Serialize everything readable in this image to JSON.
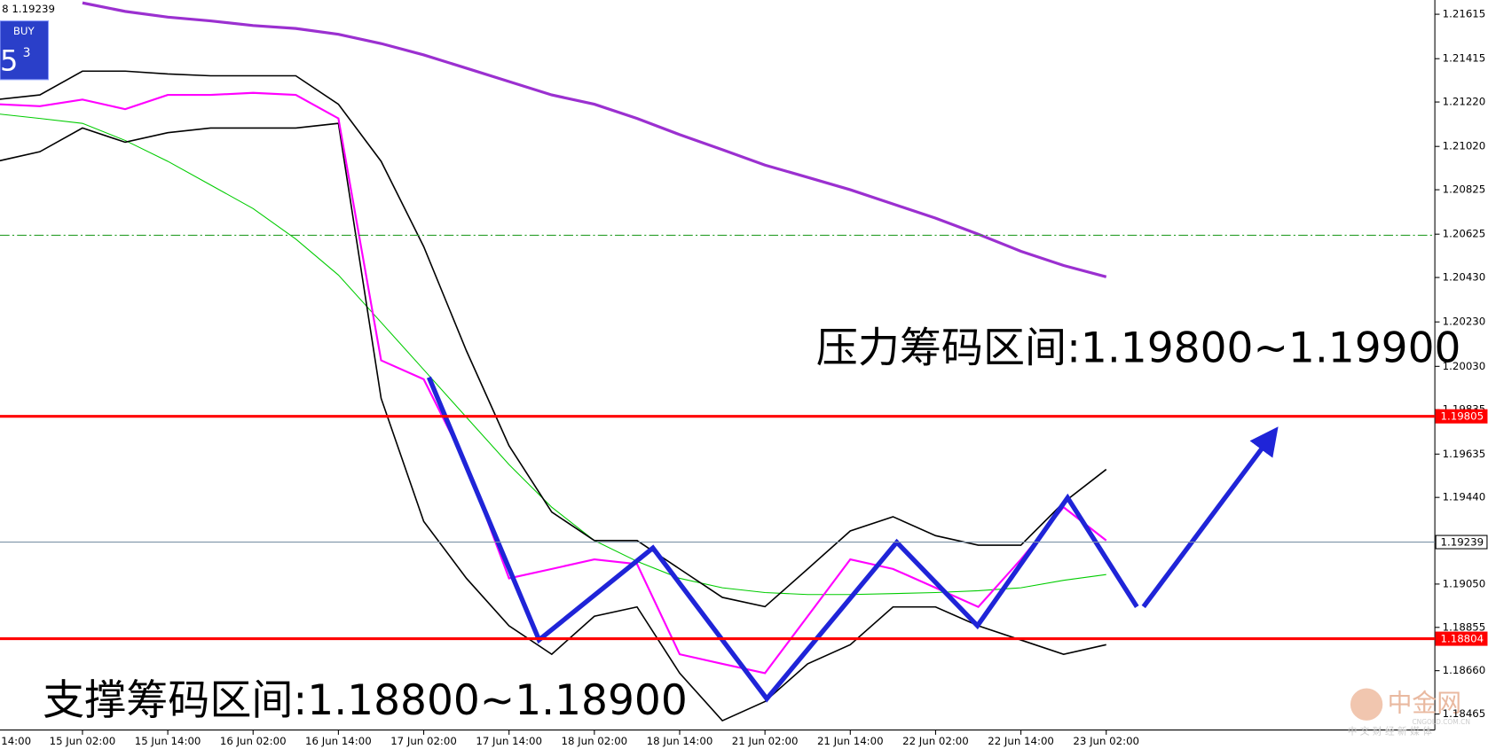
{
  "chart_data": {
    "type": "line",
    "header": {
      "symbol_price": "8 1.19239",
      "button": "BUY",
      "big_digit": "5",
      "small_digit": "3"
    },
    "annotations": [
      "压力筹码区间:1.19800~1.19900",
      "支撑筹码区间:1.18800~1.18900"
    ],
    "watermark": {
      "name": "中金网",
      "domain": "CNGOLD.COM.CN",
      "slogan": "中 文 财 经 新 媒 体"
    },
    "categories": [
      "14:00",
      null,
      "15 Jun 02:00",
      null,
      "15 Jun 14:00",
      null,
      "16 Jun 02:00",
      null,
      "16 Jun 14:00",
      null,
      "17 Jun 02:00",
      null,
      "17 Jun 14:00",
      null,
      "18 Jun 02:00",
      null,
      "18 Jun 14:00",
      null,
      "21 Jun 02:00",
      null,
      "21 Jun 14:00",
      null,
      "22 Jun 02:00",
      null,
      "22 Jun 14:00",
      null,
      "23 Jun 02:00"
    ],
    "series": [
      {
        "color": "#9b30d0",
        "width": 3,
        "values": [
          null,
          null,
          1.21666,
          1.21628,
          1.21602,
          1.21585,
          1.21564,
          1.21551,
          1.21525,
          1.21483,
          1.21432,
          1.21372,
          1.21312,
          1.21252,
          1.2121,
          1.21146,
          1.21073,
          1.21005,
          1.20936,
          1.20881,
          1.20825,
          1.20761,
          1.20697,
          1.20625,
          1.20548,
          1.20484,
          1.20433
        ]
      },
      {
        "color": "#00cc00",
        "width": 1,
        "values": [
          1.21167,
          1.21146,
          1.21124,
          1.21047,
          1.20953,
          1.20847,
          1.2074,
          1.20603,
          1.20441,
          1.20228,
          1.20015,
          1.19801,
          1.19588,
          1.19396,
          1.19246,
          1.19152,
          1.19076,
          1.19033,
          1.19012,
          1.19003,
          1.19003,
          1.19007,
          1.19012,
          1.1902,
          1.19033,
          1.19067,
          1.19093
        ]
      },
      {
        "color": "#000000",
        "width": 1.5,
        "values": [
          1.21231,
          1.21252,
          1.21359,
          1.21359,
          1.21346,
          1.21338,
          1.21338,
          1.21338,
          1.2121,
          1.20953,
          1.20569,
          1.201,
          1.19673,
          1.19374,
          1.19246,
          1.19246,
          1.19118,
          1.1899,
          1.18948,
          1.19118,
          1.19289,
          1.19353,
          1.19268,
          1.19225,
          1.19225,
          1.19417,
          1.19566
        ]
      },
      {
        "color": "#000000",
        "width": 1.5,
        "values": [
          1.20953,
          1.20996,
          1.21103,
          1.21039,
          1.21082,
          1.21103,
          1.21103,
          1.21103,
          1.21124,
          1.19886,
          1.19332,
          1.19076,
          1.18862,
          1.18734,
          1.18905,
          1.18947,
          1.18649,
          1.18435,
          1.18521,
          1.18691,
          1.18777,
          1.18947,
          1.18947,
          1.18862,
          1.18798,
          1.18734,
          1.18777
        ]
      },
      {
        "color": "#ff00ff",
        "width": 2,
        "values": [
          1.2121,
          1.21201,
          1.21231,
          1.21188,
          1.21252,
          1.21252,
          1.21261,
          1.21252,
          1.21146,
          1.20057,
          1.19972,
          1.19588,
          1.19076,
          1.19118,
          1.19161,
          1.1914,
          1.18734,
          1.18691,
          1.18649,
          1.18905,
          1.19161,
          1.19118,
          1.19033,
          1.18947,
          1.19161,
          1.19396,
          1.19246
        ]
      }
    ],
    "levels": [
      {
        "value": 1.19805,
        "color": "#ff0000",
        "labeled": true
      },
      {
        "value": 1.18804,
        "color": "#ff0000",
        "labeled": true
      },
      {
        "value": 1.19239,
        "color": "#7d93a8",
        "labeled": true
      },
      {
        "value": 1.2062,
        "color": "#2ca02c",
        "labeled": false
      }
    ],
    "ylim": [
      1.18393,
      1.21679
    ],
    "yticks": [
      1.21615,
      1.21415,
      {
        "value": 1.2122,
        "label": "1.21220"
      },
      {
        "value": 1.2102,
        "label": "1.21020"
      },
      1.20825,
      1.20625,
      {
        "value": 1.2043,
        "label": "1.20430"
      },
      {
        "value": 1.2023,
        "label": "1.20230"
      },
      {
        "value": 1.2003,
        "label": "1.20030"
      },
      1.19835,
      1.19635,
      {
        "value": 1.1944,
        "label": "1.19440"
      },
      {
        "value": 1.1905,
        "label": "1.19050"
      },
      1.18855,
      {
        "value": 1.1866,
        "label": "1.18660"
      },
      1.18465
    ]
  }
}
